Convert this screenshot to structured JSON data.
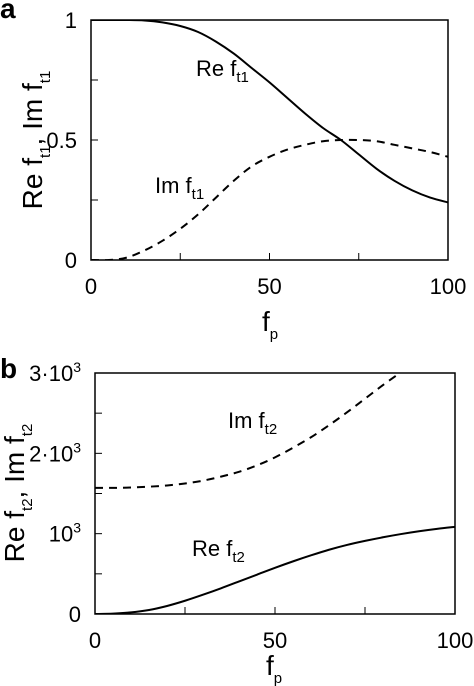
{
  "chart_data": [
    {
      "type": "line",
      "panel_label": "a",
      "xlabel": "f",
      "xlabel_sub": "p",
      "ylabel": "Re f",
      "ylabel_sub": "t1",
      "ylabel_mid": ", Im f",
      "ylabel_sub2": "t1",
      "xlim": [
        0,
        100
      ],
      "ylim": [
        0,
        1
      ],
      "x_ticks": [
        0,
        50,
        100
      ],
      "x_minor_ticks": [
        25,
        75
      ],
      "x_tick_labels": [
        "0",
        "50",
        "100"
      ],
      "y_ticks": [
        0,
        0.5,
        1
      ],
      "y_minor_ticks": [
        0.25,
        0.75
      ],
      "y_tick_labels": [
        "0",
        "0.5",
        "1"
      ],
      "grid": false,
      "x": [
        0,
        5,
        10,
        15,
        20,
        25,
        30,
        35,
        40,
        45,
        50,
        55,
        60,
        65,
        70,
        75,
        80,
        85,
        90,
        95,
        100
      ],
      "series": [
        {
          "name": "Re f",
          "name_sub": "t1",
          "style": "solid",
          "values": [
            1.0,
            1.0,
            1.0,
            0.998,
            0.99,
            0.975,
            0.95,
            0.91,
            0.86,
            0.8,
            0.74,
            0.675,
            0.61,
            0.55,
            0.5,
            0.44,
            0.38,
            0.33,
            0.29,
            0.26,
            0.24
          ]
        },
        {
          "name": "Im f",
          "name_sub": "t1",
          "style": "dashed",
          "values": [
            0.0,
            0.0,
            0.01,
            0.04,
            0.08,
            0.13,
            0.19,
            0.26,
            0.33,
            0.39,
            0.43,
            0.46,
            0.48,
            0.495,
            0.5,
            0.5,
            0.495,
            0.48,
            0.465,
            0.45,
            0.43
          ]
        }
      ]
    },
    {
      "type": "line",
      "panel_label": "b",
      "xlabel": "f",
      "xlabel_sub": "p",
      "ylabel": "Re f",
      "ylabel_sub": "t2",
      "ylabel_mid": ", Im f",
      "ylabel_sub2": "t2",
      "xlim": [
        0,
        100
      ],
      "ylim": [
        0,
        3000
      ],
      "x_ticks": [
        0,
        50,
        100
      ],
      "x_minor_ticks": [
        25,
        75
      ],
      "x_tick_labels": [
        "0",
        "50",
        "100"
      ],
      "y_ticks": [
        0,
        1000,
        2000,
        3000
      ],
      "y_minor_ticks": [
        500,
        1500,
        2500
      ],
      "y_tick_labels": [
        {
          "base": "0",
          "exp": ""
        },
        {
          "base": "10",
          "exp": "3"
        },
        {
          "base": "2·10",
          "exp": "3"
        },
        {
          "base": "3·10",
          "exp": "3"
        }
      ],
      "grid": false,
      "x": [
        0,
        5,
        10,
        15,
        20,
        25,
        30,
        35,
        40,
        45,
        50,
        55,
        60,
        65,
        70,
        75,
        80,
        85,
        90,
        95,
        100
      ],
      "series": [
        {
          "name": "Im f",
          "name_sub": "t2",
          "style": "dashed",
          "values": [
            1570,
            1570,
            1575,
            1585,
            1600,
            1625,
            1660,
            1710,
            1770,
            1850,
            1950,
            2070,
            2200,
            2350,
            2510,
            2680,
            2850,
            3010,
            null,
            null,
            null
          ]
        },
        {
          "name": "Re f",
          "name_sub": "t2",
          "style": "solid",
          "values": [
            0,
            5,
            20,
            50,
            100,
            165,
            240,
            320,
            405,
            490,
            575,
            655,
            730,
            800,
            860,
            910,
            955,
            995,
            1030,
            1060,
            1085
          ]
        }
      ]
    }
  ]
}
